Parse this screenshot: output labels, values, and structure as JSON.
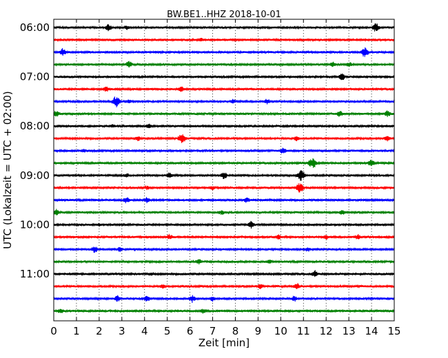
{
  "chart_data": {
    "type": "line",
    "title": "BW.BE1..HHZ 2018-10-01",
    "xlabel": "Zeit  [min]",
    "ylabel": "UTC (Lokalzeit = UTC + 02:00)",
    "xlim": [
      0,
      15
    ],
    "x_ticks": [
      "0",
      "1",
      "2",
      "3",
      "4",
      "5",
      "6",
      "7",
      "8",
      "9",
      "10",
      "11",
      "12",
      "13",
      "14",
      "15"
    ],
    "y_ticks": [
      "06:00",
      "07:00",
      "08:00",
      "09:00",
      "10:00",
      "11:00"
    ],
    "grid": "vertical dotted lines at each minute",
    "traces_per_hour": 4,
    "trace_minutes": 15,
    "colors": [
      "#000000",
      "#ff0000",
      "#0000ff",
      "#008000"
    ],
    "series": [
      {
        "start": "06:00",
        "events": [
          [
            2.4,
            0.55
          ],
          [
            3.2,
            0.3
          ],
          [
            14.2,
            0.8
          ]
        ]
      },
      {
        "start": "06:15",
        "events": [
          [
            6.5,
            0.25
          ]
        ]
      },
      {
        "start": "06:30",
        "events": [
          [
            0.4,
            0.6
          ],
          [
            13.7,
            0.9
          ]
        ]
      },
      {
        "start": "06:45",
        "events": [
          [
            3.3,
            0.6
          ],
          [
            12.3,
            0.4
          ],
          [
            13.0,
            0.4
          ]
        ]
      },
      {
        "start": "07:00",
        "events": [
          [
            12.7,
            0.6
          ]
        ]
      },
      {
        "start": "07:15",
        "events": [
          [
            2.3,
            0.4
          ],
          [
            5.6,
            0.5
          ]
        ]
      },
      {
        "start": "07:30",
        "events": [
          [
            2.75,
            1.0
          ],
          [
            3.3,
            0.3
          ],
          [
            7.9,
            0.3
          ],
          [
            9.4,
            0.4
          ]
        ]
      },
      {
        "start": "07:45",
        "events": [
          [
            0.1,
            0.5
          ],
          [
            12.6,
            0.5
          ],
          [
            14.7,
            0.5
          ]
        ]
      },
      {
        "start": "08:00",
        "events": [
          [
            4.2,
            0.4
          ],
          [
            2.6,
            0.3
          ]
        ]
      },
      {
        "start": "08:15",
        "events": [
          [
            3.7,
            0.4
          ],
          [
            5.65,
            0.95
          ],
          [
            10.7,
            0.4
          ],
          [
            14.7,
            0.4
          ]
        ]
      },
      {
        "start": "08:30",
        "events": [
          [
            10.1,
            0.5
          ],
          [
            1.3,
            0.2
          ]
        ]
      },
      {
        "start": "08:45",
        "events": [
          [
            11.4,
            1.0
          ],
          [
            14.0,
            0.6
          ]
        ]
      },
      {
        "start": "09:00",
        "events": [
          [
            5.1,
            0.5
          ],
          [
            7.5,
            0.6
          ],
          [
            10.9,
            1.0
          ],
          [
            3.2,
            0.3
          ]
        ]
      },
      {
        "start": "09:15",
        "events": [
          [
            4.1,
            0.3
          ],
          [
            7.0,
            0.3
          ],
          [
            10.85,
            1.0
          ]
        ]
      },
      {
        "start": "09:30",
        "events": [
          [
            3.2,
            0.5
          ],
          [
            4.1,
            0.4
          ],
          [
            8.5,
            0.4
          ]
        ]
      },
      {
        "start": "09:45",
        "events": [
          [
            0.1,
            0.5
          ],
          [
            7.4,
            0.4
          ],
          [
            12.7,
            0.4
          ]
        ]
      },
      {
        "start": "10:00",
        "events": [
          [
            8.7,
            0.6
          ],
          [
            2.0,
            0.2
          ]
        ]
      },
      {
        "start": "10:15",
        "events": [
          [
            5.1,
            0.4
          ],
          [
            9.9,
            0.4
          ],
          [
            12.0,
            0.4
          ],
          [
            13.4,
            0.4
          ]
        ]
      },
      {
        "start": "10:30",
        "events": [
          [
            1.8,
            0.55
          ],
          [
            2.9,
            0.4
          ],
          [
            11.2,
            0.3
          ]
        ]
      },
      {
        "start": "10:45",
        "events": [
          [
            6.4,
            0.5
          ],
          [
            9.5,
            0.3
          ]
        ]
      },
      {
        "start": "11:00",
        "events": [
          [
            11.5,
            0.6
          ],
          [
            4.3,
            0.25
          ]
        ]
      },
      {
        "start": "11:15",
        "events": [
          [
            9.1,
            0.4
          ],
          [
            10.7,
            0.55
          ],
          [
            4.8,
            0.3
          ]
        ]
      },
      {
        "start": "11:30",
        "events": [
          [
            2.8,
            0.5
          ],
          [
            4.1,
            0.5
          ],
          [
            6.1,
            0.6
          ],
          [
            7.0,
            0.4
          ],
          [
            10.6,
            0.4
          ]
        ]
      },
      {
        "start": "11:45",
        "events": [
          [
            0.3,
            0.4
          ],
          [
            6.6,
            0.4
          ]
        ]
      }
    ]
  }
}
